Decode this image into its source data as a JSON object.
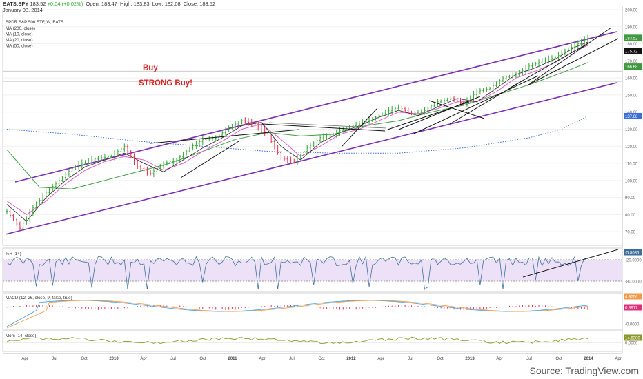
{
  "header": {
    "symbol": "BATS:SPY",
    "last": "183.52",
    "change": "+0.04 (+0.02%)",
    "open_label": "Open:",
    "open": "183.47",
    "high_label": "High:",
    "high": "183.83",
    "low_label": "Low:",
    "low": "182.08",
    "close_label": "Close:",
    "close": "183.52",
    "date": "January 08, 2014"
  },
  "legend": {
    "title": "SPDR S&P 500 ETF, W, BATS",
    "items": [
      "MA (200, close)",
      "MA (10, close)",
      "MA (20, close)",
      "MA (50, close)"
    ]
  },
  "annotations": {
    "buy": "Buy",
    "strong_buy": "STRONG Buy!"
  },
  "panes": {
    "wr_label": "%R (14)",
    "macd_label": "MACD (12, 26, close, 9, false, true)",
    "mom_label": "Mom (14, close)"
  },
  "source": "Source: TradingView.com",
  "colors": {
    "up": "#33a533",
    "down": "#e0304a",
    "channel": "#7b2fb5",
    "ma200": "#3a6fd8",
    "ma50": "#3f9a3f",
    "ma20": "#e05ad0",
    "ma10": "#222222",
    "wr": "#3f6f99",
    "macd": "#49a6e6",
    "signal": "#f29a4a",
    "mom": "#8a9a2a"
  },
  "chart_data": {
    "type": "line",
    "xlabel": "",
    "ylabel": "",
    "ylim": [
      62,
      200
    ],
    "x_ticks": [
      "Apr",
      "Jul",
      "Oct",
      "2010",
      "Apr",
      "Jul",
      "Oct",
      "2011",
      "Apr",
      "Jul",
      "Oct",
      "2012",
      "Apr",
      "Jul",
      "Oct",
      "2013",
      "Apr",
      "Jul",
      "Oct",
      "2014",
      "Apr"
    ],
    "y_ticks": [
      70,
      80,
      90,
      100,
      110,
      120,
      130,
      140,
      150,
      160,
      170,
      180,
      190,
      200
    ],
    "y_ticks_label": [
      "70.00",
      "80.00",
      "90.00",
      "100.00",
      "110.00",
      "120.00",
      "130.00",
      "140.00",
      "150.00",
      "160.00",
      "170.00",
      "180.00",
      "190.00",
      "200.00"
    ],
    "price_tags": [
      {
        "value": "183.52",
        "y": 183.52,
        "color": "#3f9a3f"
      },
      {
        "value": "175.72",
        "y": 175.72,
        "color": "#111111"
      },
      {
        "value": "166.68",
        "y": 166.68,
        "color": "#3f9a3f"
      },
      {
        "value": "137.68",
        "y": 137.68,
        "color": "#3a6fd8"
      }
    ],
    "horizontal_levels": [
      170,
      164,
      158
    ],
    "price_series": {
      "name": "SPY",
      "x": [
        0,
        4,
        8,
        12,
        16,
        20,
        24,
        28,
        32,
        36,
        40,
        44,
        48,
        52,
        56,
        60,
        64,
        68,
        72,
        76,
        80,
        84,
        88,
        92,
        96,
        100,
        104,
        108,
        112,
        116,
        120,
        124,
        128,
        132,
        136,
        140,
        144,
        148,
        152,
        156,
        160,
        164,
        168,
        172,
        176,
        178
      ],
      "y": [
        82,
        72,
        84,
        93,
        100,
        107,
        111,
        113,
        114,
        120,
        108,
        104,
        110,
        112,
        119,
        124,
        125,
        131,
        135,
        133,
        126,
        113,
        111,
        119,
        125,
        127,
        131,
        133,
        136,
        140,
        143,
        139,
        141,
        146,
        148,
        145,
        152,
        154,
        160,
        162,
        167,
        170,
        172,
        177,
        181,
        183.5
      ]
    },
    "ma200": {
      "x": [
        0,
        20,
        40,
        60,
        80,
        100,
        120,
        140,
        160,
        170,
        178
      ],
      "y": [
        130,
        127,
        123,
        120,
        117,
        116,
        116,
        119,
        125,
        130,
        137.7
      ]
    },
    "ma50": {
      "x": [
        0,
        10,
        20,
        30,
        40,
        50,
        60,
        70,
        80,
        90,
        100,
        110,
        120,
        130,
        140,
        150,
        160,
        170,
        178
      ],
      "y": [
        118,
        96,
        95,
        100,
        105,
        110,
        117,
        124,
        128,
        126,
        127,
        132,
        135,
        140,
        144,
        150,
        156,
        163,
        169
      ]
    },
    "ma20": {
      "x": [
        0,
        6,
        12,
        18,
        24,
        30,
        36,
        42,
        48,
        54,
        60,
        66,
        72,
        78,
        84,
        90,
        96,
        102,
        108,
        114,
        120,
        126,
        132,
        138,
        144,
        150,
        156,
        162,
        168,
        174,
        178
      ],
      "y": [
        88,
        80,
        88,
        98,
        106,
        111,
        114,
        112,
        106,
        110,
        117,
        123,
        130,
        133,
        124,
        114,
        120,
        127,
        130,
        135,
        140,
        139,
        142,
        146,
        146,
        152,
        160,
        164,
        169,
        176,
        179
      ]
    },
    "ma10": {
      "x": [
        0,
        6,
        12,
        18,
        24,
        30,
        36,
        42,
        48,
        54,
        60,
        66,
        72,
        78,
        84,
        90,
        96,
        102,
        108,
        114,
        120,
        126,
        132,
        138,
        144,
        150,
        156,
        162,
        168,
        174,
        178
      ],
      "y": [
        86,
        76,
        90,
        100,
        108,
        112,
        116,
        110,
        105,
        112,
        119,
        125,
        132,
        134,
        120,
        112,
        122,
        128,
        132,
        137,
        141,
        138,
        143,
        148,
        146,
        154,
        162,
        166,
        171,
        178,
        181
      ]
    },
    "oscillators": {
      "wr_levels": [
        "-5.8036",
        "-20.0000",
        "-80.0000"
      ],
      "macd_values": [
        "4.9756",
        "0.8917",
        "-0.0000"
      ],
      "mom_values": [
        "14.6300",
        "0.0000"
      ]
    }
  }
}
